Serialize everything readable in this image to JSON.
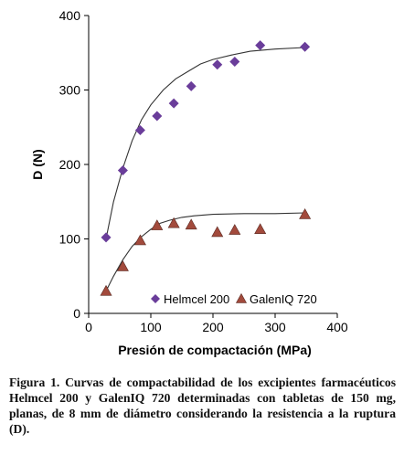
{
  "caption": {
    "prefix": "Figura 1.",
    "text": "Curvas de compactabilidad de los excipientes farmacéuticos Helmcel 200 y GalenIQ 720 determinadas con tabletas de 150 mg, planas, de 8 mm de diámetro considerando la resistencia a la ruptura (D)."
  },
  "chart_data": {
    "type": "scatter",
    "title": "",
    "xlabel": "Presión de compactación (MPa)",
    "ylabel": "D (N)",
    "xlim": [
      0,
      400
    ],
    "ylim": [
      0,
      400
    ],
    "xticks": [
      "0",
      "100",
      "200",
      "300",
      "400"
    ],
    "yticks": [
      "0",
      "100",
      "200",
      "300",
      "400"
    ],
    "grid": false,
    "legend": "bottom-inside",
    "series": [
      {
        "name": "Helmcel 200",
        "marker": "diamond",
        "color": "#6a3d9a",
        "x": [
          28,
          55,
          83,
          110,
          137,
          165,
          207,
          235,
          276,
          348
        ],
        "y": [
          102,
          192,
          246,
          265,
          282,
          305,
          334,
          338,
          360,
          358
        ],
        "trend_x": [
          28,
          40,
          55,
          70,
          85,
          100,
          120,
          140,
          160,
          180,
          200,
          230,
          260,
          300,
          348
        ],
        "trend_y": [
          100,
          150,
          195,
          232,
          260,
          280,
          300,
          315,
          325,
          335,
          341,
          347,
          352,
          355,
          357
        ]
      },
      {
        "name": "GalenIQ 720",
        "marker": "triangle",
        "color": "#a24a3c",
        "x": [
          28,
          55,
          83,
          110,
          137,
          165,
          207,
          235,
          276,
          348
        ],
        "y": [
          30,
          63,
          98,
          118,
          121,
          119,
          109,
          112,
          113,
          133
        ],
        "trend_x": [
          28,
          40,
          55,
          70,
          85,
          100,
          115,
          130,
          150,
          170,
          200,
          250,
          300,
          348
        ],
        "trend_y": [
          30,
          50,
          72,
          90,
          103,
          113,
          121,
          125,
          129,
          131,
          133,
          134,
          134,
          135
        ]
      }
    ]
  }
}
